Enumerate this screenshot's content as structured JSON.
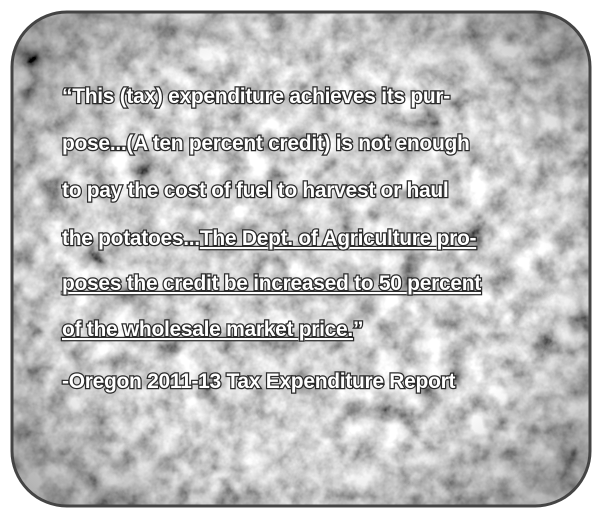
{
  "quote": {
    "lines": [
      [
        {
          "text": "“This (tax) expenditure achieves its pur-",
          "underline": false
        }
      ],
      [
        {
          "text": "pose...(A ten percent credit) is not enough",
          "underline": false
        }
      ],
      [
        {
          "text": "to pay the cost of fuel to harvest or haul",
          "underline": false
        }
      ],
      [
        {
          "text": "the potatoes...",
          "underline": false
        },
        {
          "text": "The Dept. of Agriculture pro-",
          "underline": true
        }
      ],
      [
        {
          "text": "poses the credit be increased to 50 percent",
          "underline": true
        }
      ],
      [
        {
          "text": "of the wholesale market price.",
          "underline": true
        },
        {
          "text": "”",
          "underline": false
        }
      ]
    ],
    "attribution": "-Oregon 2011-13 Tax Expenditure Report"
  }
}
